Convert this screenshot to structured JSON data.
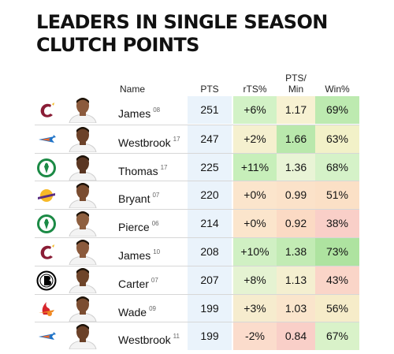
{
  "title": {
    "line1": "LEADERS IN SINGLE SEASON",
    "line2": "CLUTCH POINTS"
  },
  "columns": {
    "name": "Name",
    "pts": "PTS",
    "ts": "rTS%",
    "ppm_line1": "PTS/",
    "ppm_line2": "Min",
    "win": "Win%"
  },
  "rows": [
    {
      "team_icon": "cavaliers-logo-icon",
      "name": "James",
      "year": "08",
      "pts": "251",
      "ts": "+6%",
      "ppm": "1.17",
      "win": "69%",
      "ts_color": "#d2f2c6",
      "ppm_color": "#f7f1d2",
      "win_color": "#bdeab0"
    },
    {
      "team_icon": "thunder-logo-icon",
      "name": "Westbrook",
      "year": "17",
      "pts": "247",
      "ts": "+2%",
      "ppm": "1.66",
      "win": "63%",
      "ts_color": "#f5f0cf",
      "ppm_color": "#b9e8ac",
      "win_color": "#f2f1c8"
    },
    {
      "team_icon": "celtics-logo-icon",
      "name": "Thomas",
      "year": "17",
      "pts": "225",
      "ts": "+11%",
      "ppm": "1.36",
      "win": "68%",
      "ts_color": "#c7efba",
      "ppm_color": "#e9f4d6",
      "win_color": "#d5f2c8"
    },
    {
      "team_icon": "lakers-logo-icon",
      "name": "Bryant",
      "year": "07",
      "pts": "220",
      "ts": "+0%",
      "ppm": "0.99",
      "win": "51%",
      "ts_color": "#fbe5cc",
      "ppm_color": "#fbe2c9",
      "win_color": "#fbe0c6"
    },
    {
      "team_icon": "celtics-logo-icon",
      "name": "Pierce",
      "year": "06",
      "pts": "214",
      "ts": "+0%",
      "ppm": "0.92",
      "win": "38%",
      "ts_color": "#fbe5cc",
      "ppm_color": "#fbdac4",
      "win_color": "#f9cfc8"
    },
    {
      "team_icon": "cavaliers-logo-icon",
      "name": "James",
      "year": "10",
      "pts": "208",
      "ts": "+10%",
      "ppm": "1.38",
      "win": "73%",
      "ts_color": "#d0f0c3",
      "ppm_color": "#c2ebb4",
      "win_color": "#aee3a0"
    },
    {
      "team_icon": "nets-logo-icon",
      "name": "Carter",
      "year": "07",
      "pts": "207",
      "ts": "+8%",
      "ppm": "1.13",
      "win": "43%",
      "ts_color": "#e5f3d2",
      "ppm_color": "#f4efd0",
      "win_color": "#fad5c8"
    },
    {
      "team_icon": "heat-logo-icon",
      "name": "Wade",
      "year": "09",
      "pts": "199",
      "ts": "+3%",
      "ppm": "1.03",
      "win": "56%",
      "ts_color": "#f6ecce",
      "ppm_color": "#fae5cc",
      "win_color": "#f6ecc9"
    },
    {
      "team_icon": "thunder-logo-icon",
      "name": "Westbrook",
      "year": "11",
      "pts": "199",
      "ts": "-2%",
      "ppm": "0.84",
      "win": "67%",
      "ts_color": "#fbdccc",
      "ppm_color": "#f9cfc8",
      "win_color": "#d9f2c9"
    }
  ]
}
